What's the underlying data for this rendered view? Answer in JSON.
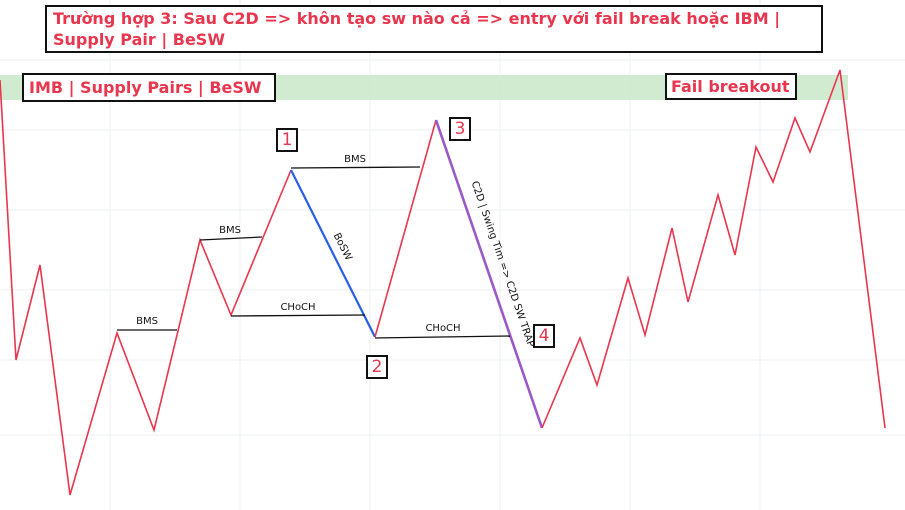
{
  "header": {
    "title": "Trường hợp 3: Sau C2D => khôn tạo sw nào cả => entry với fail break hoặc IBM | Supply Pair | BeSW"
  },
  "zone": {
    "label": "IMB | Supply Pairs | BeSW",
    "annotation": "Fail breakout"
  },
  "lines": [
    {
      "label": "BMS"
    },
    {
      "label": "BMS"
    },
    {
      "label": "CHoCH"
    },
    {
      "label": "BMS"
    },
    {
      "label": "CHoCH"
    }
  ],
  "legs": [
    {
      "label": "BoSW"
    },
    {
      "label": "C2D | Swing Tìm => C2D SW TRAP"
    }
  ],
  "markers": [
    "1",
    "2",
    "3",
    "4"
  ]
}
